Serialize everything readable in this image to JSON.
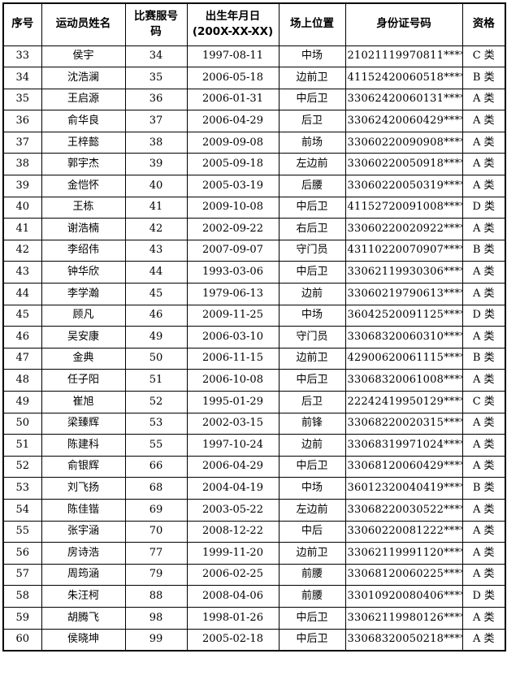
{
  "table": {
    "headers": [
      "序号",
      "运动员姓名",
      "比赛服号\n码",
      "出生年月日\n(200X-XX-XX)",
      "场上位置",
      "身份证号码",
      "资格"
    ],
    "rows": [
      [
        "33",
        "侯宇",
        "34",
        "1997-08-11",
        "中场",
        "21021119970811****",
        "C 类"
      ],
      [
        "34",
        "沈浩澜",
        "35",
        "2006-05-18",
        "边前卫",
        "41152420060518****",
        "B 类"
      ],
      [
        "35",
        "王启源",
        "36",
        "2006-01-31",
        "中后卫",
        "33062420060131****",
        "A 类"
      ],
      [
        "36",
        "俞华良",
        "37",
        "2006-04-29",
        "后卫",
        "33062420060429****",
        "A 类"
      ],
      [
        "37",
        "王梓懿",
        "38",
        "2009-09-08",
        "前场",
        "33060220090908****",
        "A 类"
      ],
      [
        "38",
        "郭宇杰",
        "39",
        "2005-09-18",
        "左边前",
        "33060220050918****",
        "A 类"
      ],
      [
        "39",
        "金恺怀",
        "40",
        "2005-03-19",
        "后腰",
        "33060220050319****",
        "A 类"
      ],
      [
        "40",
        "王栋",
        "41",
        "2009-10-08",
        "中后卫",
        "41152720091008****",
        "D 类"
      ],
      [
        "41",
        "谢浩楠",
        "42",
        "2002-09-22",
        "右后卫",
        "33060220020922****",
        "A 类"
      ],
      [
        "42",
        "李绍伟",
        "43",
        "2007-09-07",
        "守门员",
        "43110220070907****",
        "B 类"
      ],
      [
        "43",
        "钟华欣",
        "44",
        "1993-03-06",
        "中后卫",
        "33062119930306****",
        "A 类"
      ],
      [
        "44",
        "李学瀚",
        "45",
        "1979-06-13",
        "边前",
        "33060219790613****",
        "A 类"
      ],
      [
        "45",
        "顾凡",
        "46",
        "2009-11-25",
        "中场",
        "36042520091125****",
        "D 类"
      ],
      [
        "46",
        "吴安康",
        "49",
        "2006-03-10",
        "守门员",
        "33068320060310****",
        "A 类"
      ],
      [
        "47",
        "金典",
        "50",
        "2006-11-15",
        "边前卫",
        "42900620061115****",
        "B 类"
      ],
      [
        "48",
        "任子阳",
        "51",
        "2006-10-08",
        "中后卫",
        "33068320061008****",
        "A 类"
      ],
      [
        "49",
        "崔旭",
        "52",
        "1995-01-29",
        "后卫",
        "22242419950129****",
        "C 类"
      ],
      [
        "50",
        "梁臻辉",
        "53",
        "2002-03-15",
        "前锋",
        "33068220020315****",
        "A 类"
      ],
      [
        "51",
        "陈建科",
        "55",
        "1997-10-24",
        "边前",
        "33068319971024****",
        "A 类"
      ],
      [
        "52",
        "俞银辉",
        "66",
        "2006-04-29",
        "中后卫",
        "33068120060429****",
        "A 类"
      ],
      [
        "53",
        "刘飞扬",
        "68",
        "2004-04-19",
        "中场",
        "36012320040419****",
        "B 类"
      ],
      [
        "54",
        "陈佳锴",
        "69",
        "2003-05-22",
        "左边前",
        "33068220030522****",
        "A 类"
      ],
      [
        "55",
        "张宇涵",
        "70",
        "2008-12-22",
        "中后",
        "33060220081222****",
        "A 类"
      ],
      [
        "56",
        "房诗浩",
        "77",
        "1999-11-20",
        "边前卫",
        "33062119991120****",
        "A 类"
      ],
      [
        "57",
        "周筠涵",
        "79",
        "2006-02-25",
        "前腰",
        "33068120060225****",
        "A 类"
      ],
      [
        "58",
        "朱汪柯",
        "88",
        "2008-04-06",
        "前腰",
        "33010920080406****",
        "D 类"
      ],
      [
        "59",
        "胡腾飞",
        "98",
        "1998-01-26",
        "中后卫",
        "33062119980126****",
        "A 类"
      ],
      [
        "60",
        "侯晓坤",
        "99",
        "2005-02-18",
        "中后卫",
        "33068320050218****",
        "A 类"
      ]
    ]
  }
}
